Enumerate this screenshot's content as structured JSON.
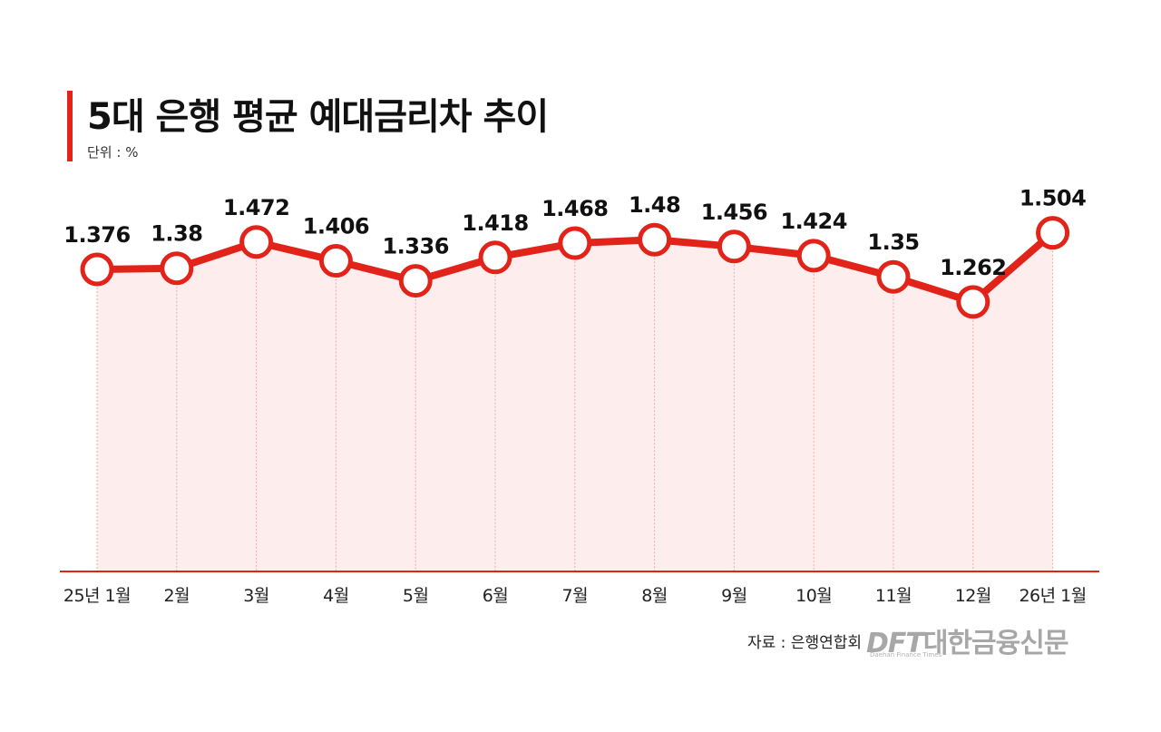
{
  "header": {
    "title": "5대 은행 평균 예대금리차 추이",
    "unit": "단위 : %"
  },
  "footer": {
    "source": "자료 : 은행연합회",
    "logo_en": "DFT",
    "logo_ko": "대한금융신문",
    "logo_sub": "Daehan Finance Times"
  },
  "colors": {
    "accent": "#e2231a",
    "area_fill": "#fdeeed",
    "guide": "#f0a8a4",
    "text": "#111111"
  },
  "chart_data": {
    "type": "line",
    "title": "5대 은행 평균 예대금리차 추이",
    "ylabel": "단위 : %",
    "xlabel": "",
    "categories": [
      "25년 1월",
      "2월",
      "3월",
      "4월",
      "5월",
      "6월",
      "7월",
      "8월",
      "9월",
      "10월",
      "11월",
      "12월",
      "26년 1월"
    ],
    "series": [
      {
        "name": "5대 은행 평균 예대금리차",
        "values": [
          1.376,
          1.38,
          1.472,
          1.406,
          1.336,
          1.418,
          1.468,
          1.48,
          1.456,
          1.424,
          1.35,
          1.262,
          1.504
        ]
      }
    ],
    "data_labels": [
      "1.376",
      "1.38",
      "1.472",
      "1.406",
      "1.336",
      "1.418",
      "1.468",
      "1.48",
      "1.456",
      "1.424",
      "1.35",
      "1.262",
      "1.504"
    ],
    "grid": false,
    "legend": "none"
  }
}
